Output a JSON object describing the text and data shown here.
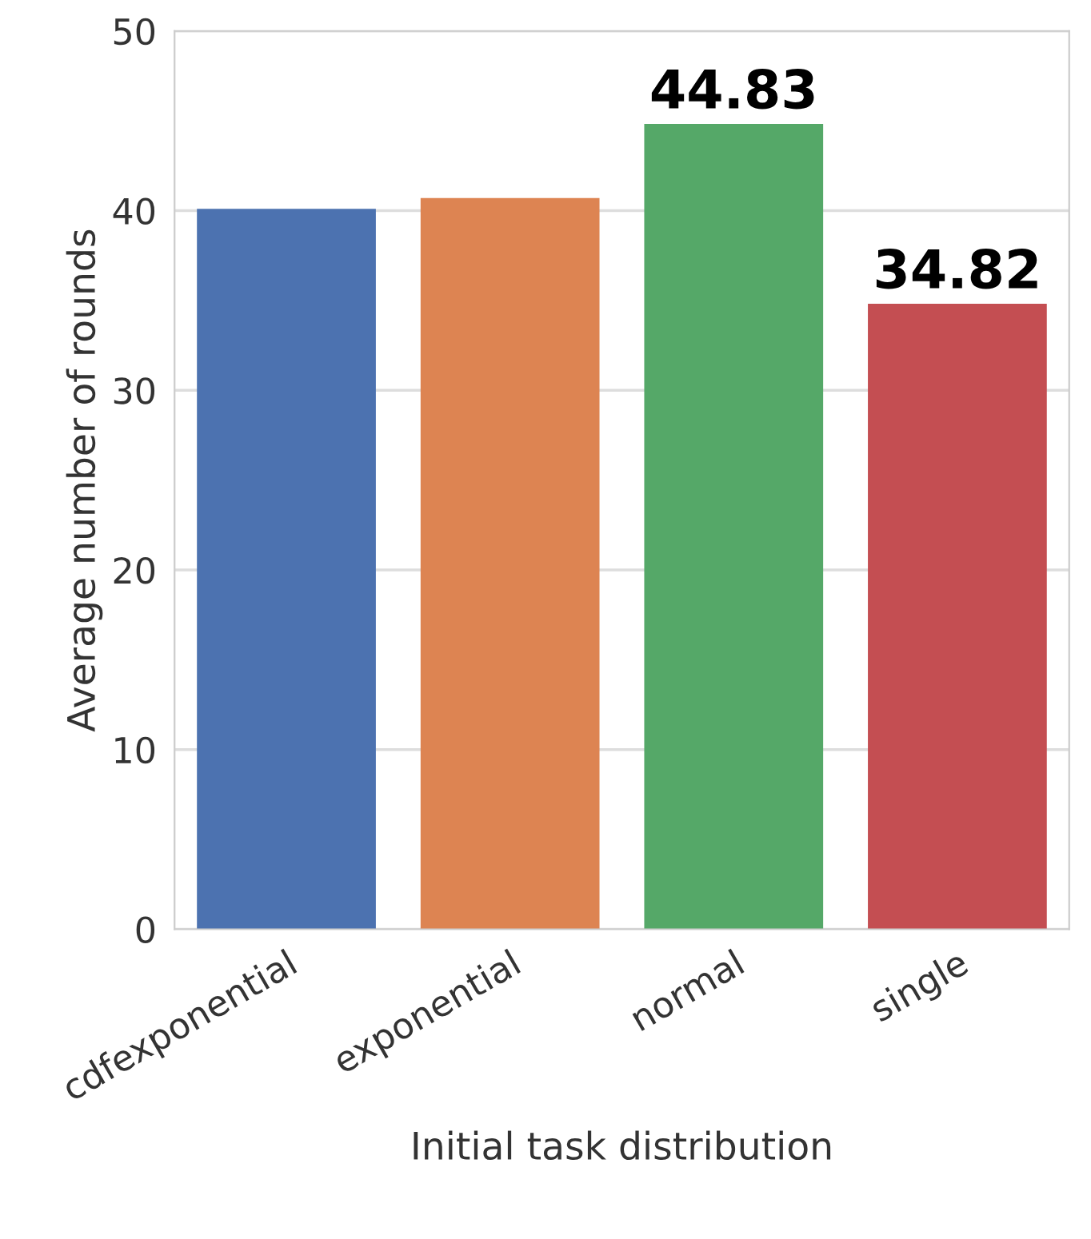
{
  "chart_data": {
    "type": "bar",
    "xlabel": "Initial task distribution",
    "ylabel": "Average number of rounds",
    "categories": [
      "cdfexponential",
      "exponential",
      "normal",
      "single"
    ],
    "values": [
      40.1,
      40.7,
      44.83,
      34.82
    ],
    "colors": [
      "#4c72b0",
      "#dd8452",
      "#55a868",
      "#c44e52"
    ],
    "value_labels": [
      null,
      null,
      "44.83",
      "34.82"
    ],
    "ylim": [
      0,
      50
    ],
    "yticks": [
      0,
      10,
      20,
      30,
      40,
      50
    ],
    "grid": "y",
    "legend": false
  }
}
